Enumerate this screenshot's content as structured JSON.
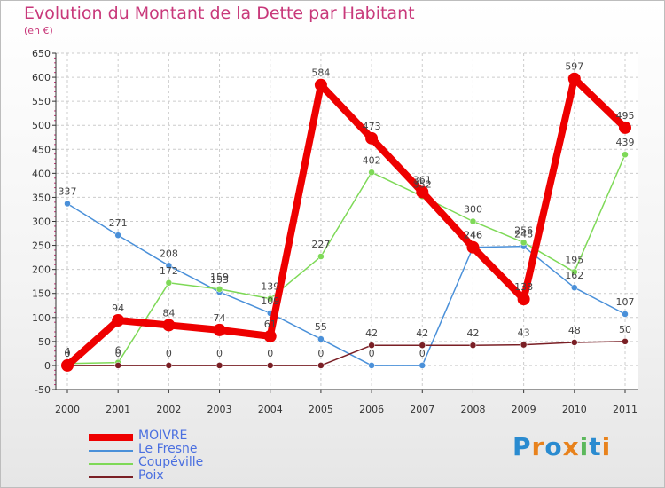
{
  "header": {
    "title": "Evolution du Montant de la Dette par Habitant",
    "subtitle": "(en €)"
  },
  "logo": {
    "letters": [
      "P",
      "r",
      "o",
      "x",
      "i",
      "t",
      "i"
    ],
    "colors": [
      "#2a8bd0",
      "#e8821c",
      "#2a8bd0",
      "#e8821c",
      "#5cb85c",
      "#2a8bd0",
      "#e8821c"
    ]
  },
  "chart_data": {
    "type": "line",
    "x": [
      "2000",
      "2001",
      "2002",
      "2003",
      "2004",
      "2005",
      "2006",
      "2007",
      "2008",
      "2009",
      "2010",
      "2011"
    ],
    "ylim": [
      -50,
      650
    ],
    "yticks": [
      -50,
      0,
      50,
      100,
      150,
      200,
      250,
      300,
      350,
      400,
      450,
      500,
      550,
      600,
      650
    ],
    "grid": true,
    "legend_position": "bottom-left",
    "series": [
      {
        "name": "Le Fresne",
        "color": "#4a90d9",
        "values": [
          337,
          271,
          208,
          153,
          109,
          55,
          0,
          0,
          246,
          248,
          162,
          107
        ]
      },
      {
        "name": "Coupéville",
        "color": "#7ed957",
        "values": [
          4,
          6,
          172,
          159,
          139,
          227,
          402,
          352,
          300,
          256,
          195,
          439
        ]
      },
      {
        "name": "Poix",
        "color": "#7a1f25",
        "values": [
          0,
          0,
          0,
          0,
          0,
          0,
          42,
          42,
          42,
          43,
          48,
          50
        ]
      },
      {
        "name": "MOIVRE",
        "color": "#ee0000",
        "values": [
          0,
          94,
          84,
          74,
          61,
          584,
          473,
          361,
          246,
          138,
          597,
          495
        ]
      }
    ],
    "labels": {
      "Le Fresne": [
        "337",
        "271",
        "208",
        "153",
        "109",
        "55",
        "0",
        "0",
        "246",
        "248",
        "162",
        "107"
      ],
      "Coupéville": [
        "4",
        "6",
        "172",
        "159",
        "139",
        "227",
        "402",
        "352",
        "300",
        "256",
        "195",
        "439"
      ],
      "Poix": [
        "0",
        "0",
        "0",
        "0",
        "0",
        "0",
        "42",
        "42",
        "42",
        "43",
        "48",
        "50"
      ],
      "MOIVRE": [
        "0",
        "94",
        "84",
        "74",
        "61",
        "584",
        "473",
        "361",
        "246",
        "138",
        "597",
        "495"
      ]
    }
  },
  "legend": {
    "items": [
      {
        "label": "MOIVRE",
        "color": "#ee0000",
        "thickness": 8,
        "text_color": "#4a6fe0"
      },
      {
        "label": "Le Fresne",
        "color": "#4a90d9",
        "thickness": 2,
        "text_color": "#4a6fe0"
      },
      {
        "label": "Coupéville",
        "color": "#7ed957",
        "thickness": 2,
        "text_color": "#4a6fe0"
      },
      {
        "label": "Poix",
        "color": "#7a1f25",
        "thickness": 2,
        "text_color": "#4a6fe0"
      }
    ]
  }
}
